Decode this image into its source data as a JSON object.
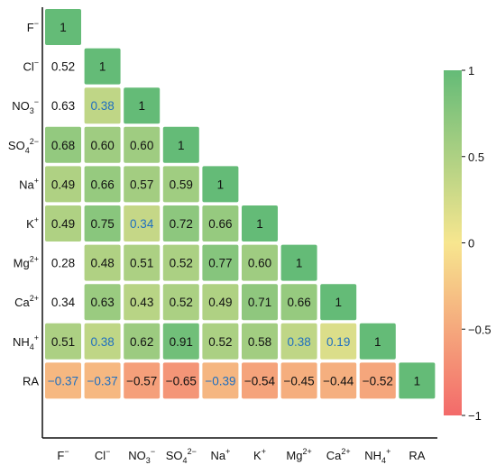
{
  "chart_data": {
    "type": "heatmap",
    "subtype": "lower-triangular correlation matrix",
    "variables": [
      "F⁻",
      "Cl⁻",
      "NO₃⁻",
      "SO₄²⁻",
      "Na⁺",
      "K⁺",
      "Mg²⁺",
      "Ca²⁺",
      "NH₄⁺",
      "RA"
    ],
    "labels_rich": [
      {
        "base": "F",
        "sup": "−"
      },
      {
        "base": "Cl",
        "sup": "−"
      },
      {
        "base": "NO",
        "sub": "3",
        "sup": "−"
      },
      {
        "base": "SO",
        "sub": "4",
        "sup": "2−"
      },
      {
        "base": "Na",
        "sup": "+"
      },
      {
        "base": "K",
        "sup": "+"
      },
      {
        "base": "Mg",
        "sup": "2+"
      },
      {
        "base": "Ca",
        "sup": "2+"
      },
      {
        "base": "NH",
        "sub": "4",
        "sup": "+"
      },
      {
        "base": "RA"
      }
    ],
    "matrix": [
      [
        1
      ],
      [
        0.52,
        1
      ],
      [
        0.63,
        0.38,
        1
      ],
      [
        0.68,
        0.6,
        0.6,
        1
      ],
      [
        0.49,
        0.66,
        0.57,
        0.59,
        1
      ],
      [
        0.49,
        0.75,
        0.34,
        0.72,
        0.66,
        1
      ],
      [
        0.28,
        0.48,
        0.51,
        0.52,
        0.77,
        0.6,
        1
      ],
      [
        0.34,
        0.63,
        0.43,
        0.52,
        0.49,
        0.71,
        0.66,
        1
      ],
      [
        0.51,
        0.38,
        0.62,
        0.91,
        0.52,
        0.58,
        0.38,
        0.19,
        1
      ],
      [
        -0.37,
        -0.37,
        -0.57,
        -0.65,
        -0.39,
        -0.54,
        -0.45,
        -0.44,
        -0.52,
        1
      ]
    ],
    "value_labels": [
      [
        "1"
      ],
      [
        "0.52",
        "1"
      ],
      [
        "0.63",
        "0.38",
        "1"
      ],
      [
        "0.68",
        "0.60",
        "0.60",
        "1"
      ],
      [
        "0.49",
        "0.66",
        "0.57",
        "0.59",
        "1"
      ],
      [
        "0.49",
        "0.75",
        "0.34",
        "0.72",
        "0.66",
        "1"
      ],
      [
        "0.28",
        "0.48",
        "0.51",
        "0.52",
        "0.77",
        "0.60",
        "1"
      ],
      [
        "0.34",
        "0.63",
        "0.43",
        "0.52",
        "0.49",
        "0.71",
        "0.66",
        "1"
      ],
      [
        "0.51",
        "0.38",
        "0.62",
        "0.91",
        "0.52",
        "0.58",
        "0.38",
        "0.19",
        "1"
      ],
      [
        "−0.37",
        "−0.37",
        "−0.57",
        "−0.65",
        "−0.39",
        "−0.54",
        "−0.45",
        "−0.44",
        "−0.52",
        "1"
      ]
    ],
    "hidden_cells": [
      [
        1,
        0
      ],
      [
        2,
        0
      ],
      [
        6,
        0
      ],
      [
        7,
        0
      ]
    ],
    "blue_text_cells": [
      [
        2,
        1
      ],
      [
        5,
        2
      ],
      [
        8,
        1
      ],
      [
        8,
        6
      ],
      [
        8,
        7
      ],
      [
        9,
        0
      ],
      [
        9,
        1
      ],
      [
        9,
        4
      ]
    ],
    "colorbar": {
      "range": [
        -1,
        1
      ],
      "ticks": [
        1,
        0.5,
        0,
        -0.5,
        -1
      ],
      "tick_labels": [
        "1",
        "0.5",
        "0",
        "−0.5",
        "−1"
      ],
      "colors": {
        "neg": "#f36a6a",
        "mid": "#f7e68f",
        "pos": "#64bb77"
      }
    },
    "text_colors": {
      "default": "#111111",
      "blue": "#1f6fc0"
    },
    "title": "",
    "xlabel": "",
    "ylabel": "",
    "grid": false,
    "legend": "right"
  }
}
